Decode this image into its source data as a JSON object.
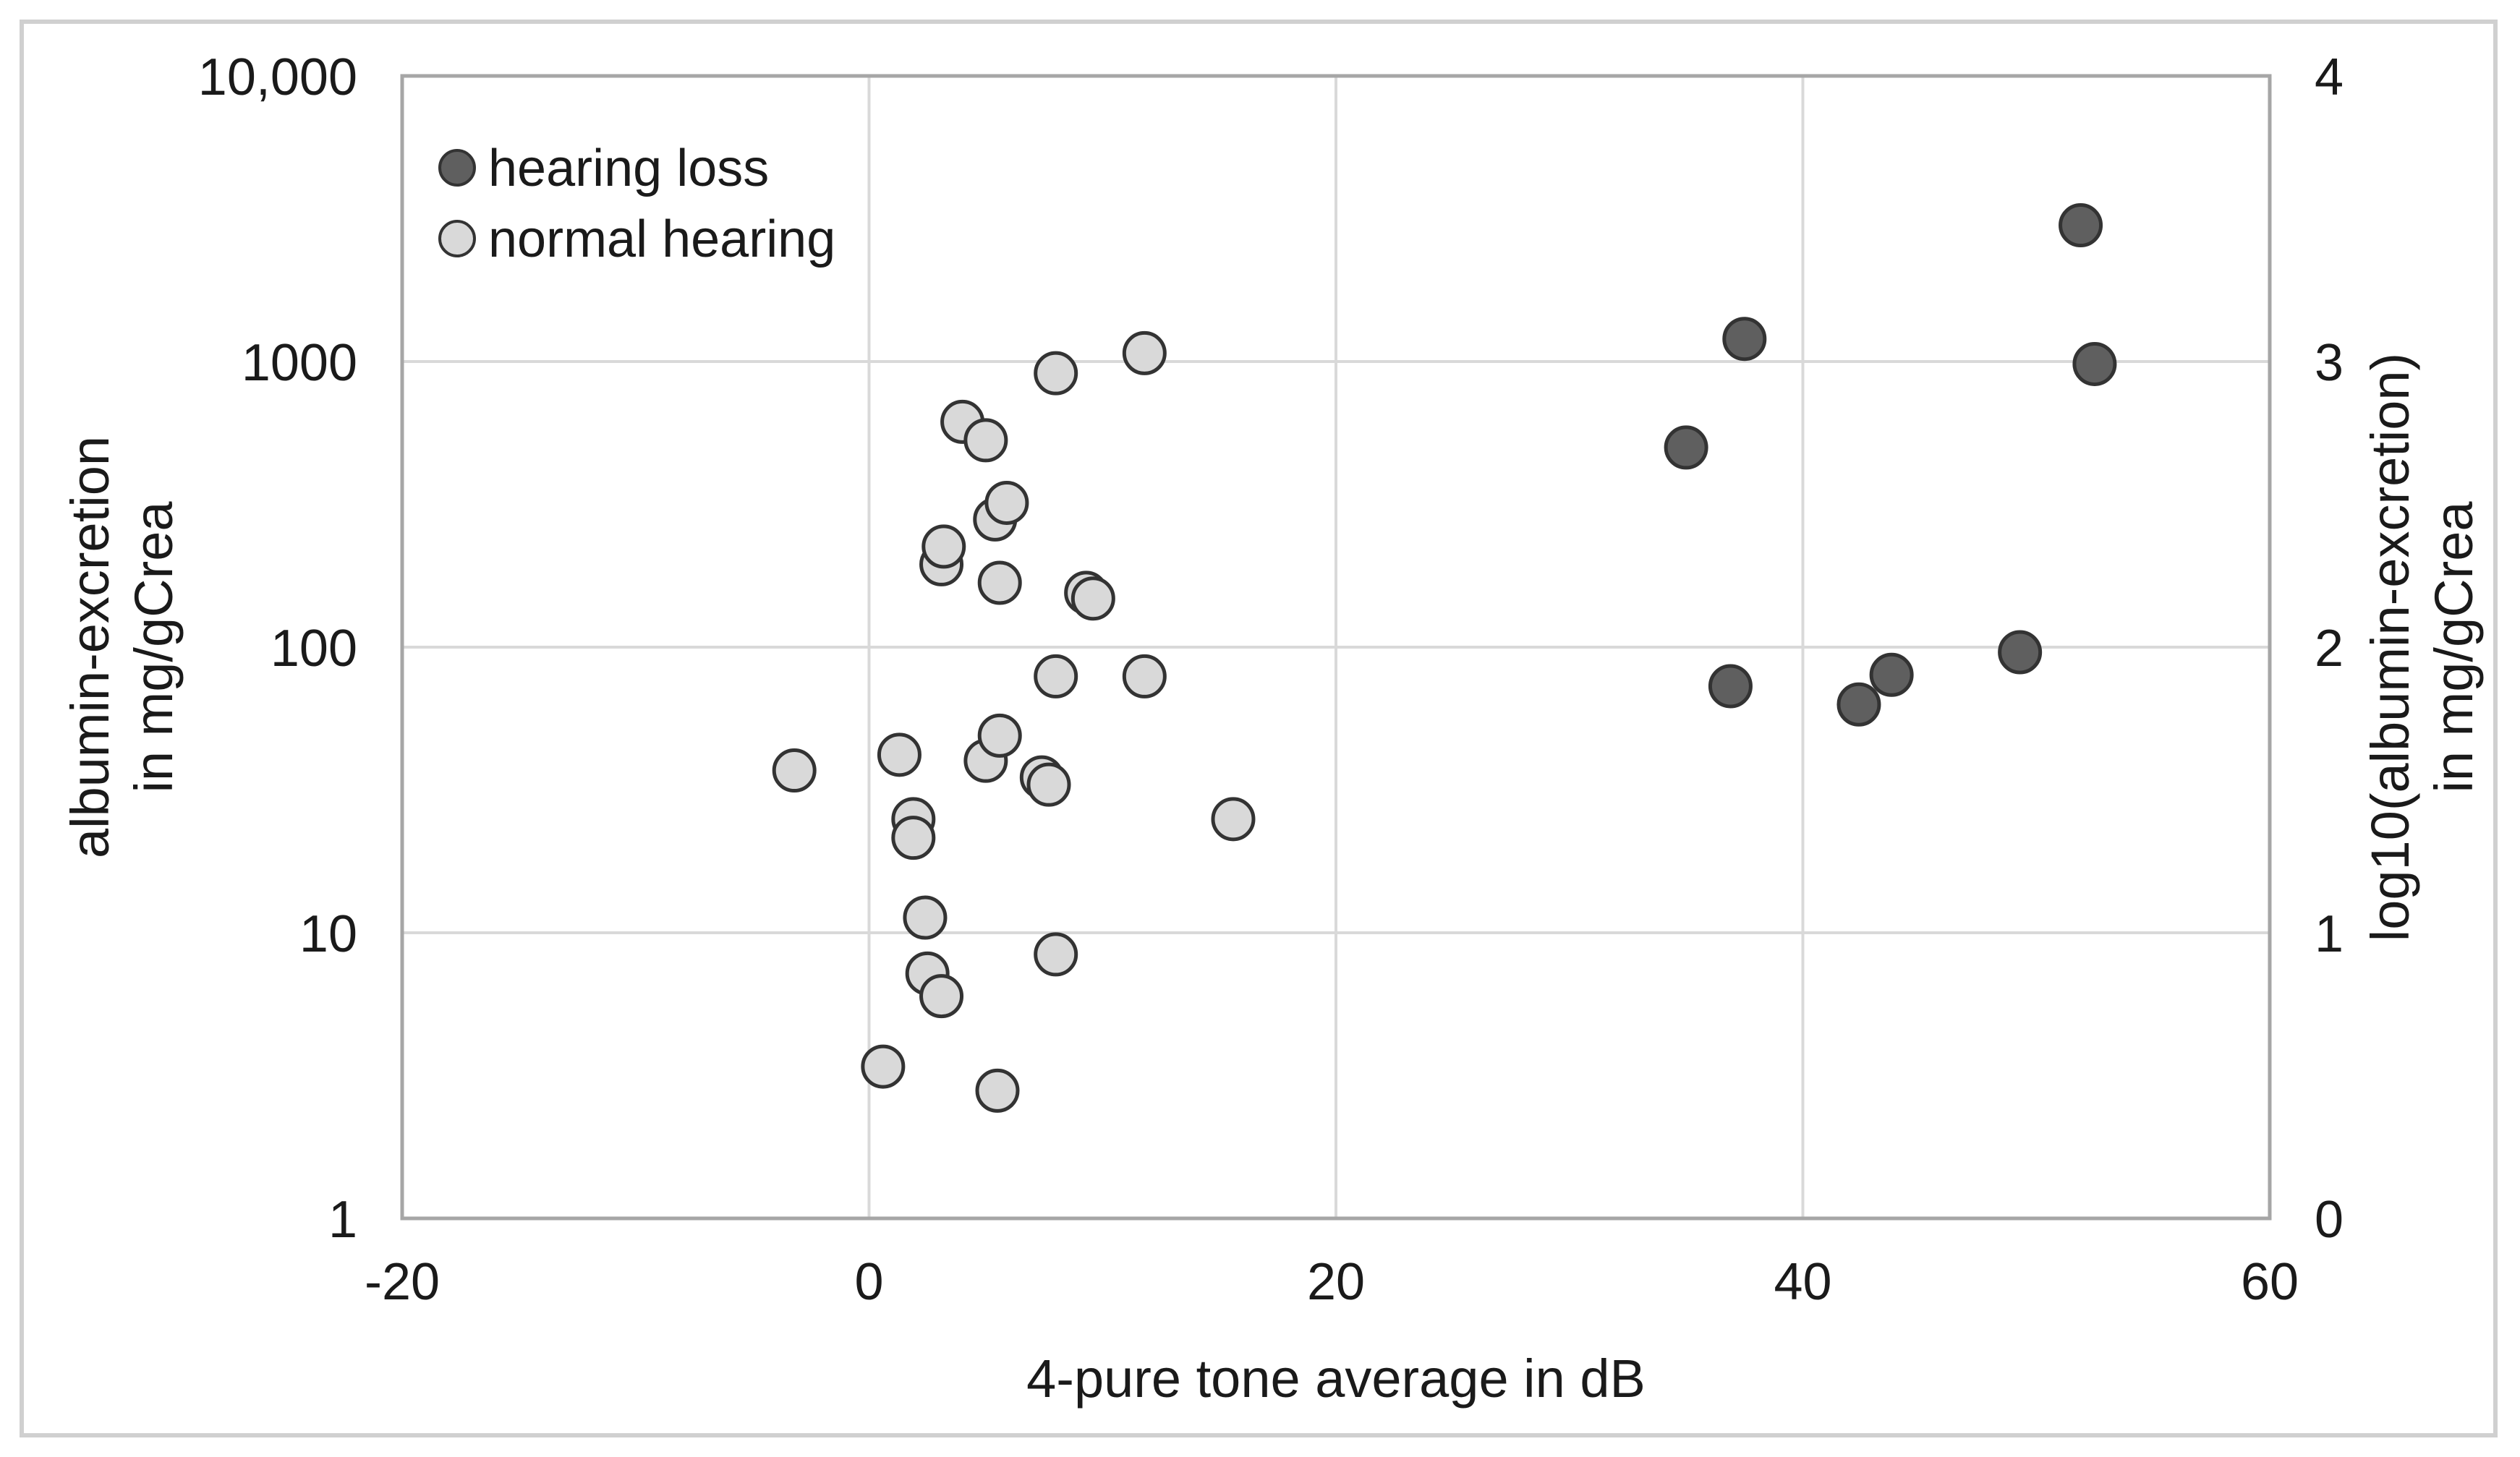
{
  "chart_data": {
    "type": "scatter",
    "title": "",
    "xlabel": "4-pure tone average in dB",
    "ylabel_left": [
      "albumin-excretion",
      "in mg/gCrea"
    ],
    "ylabel_right": [
      "log10(albumin-excretion)",
      "in mg/gCrea"
    ],
    "xlim": [
      -20,
      60
    ],
    "ylim_log10": [
      0,
      4
    ],
    "x_ticks": [
      -20,
      0,
      20,
      40,
      60
    ],
    "x_tick_labels": [
      "-20",
      "0",
      "20",
      "40",
      "60"
    ],
    "y_left_ticks": [
      1,
      10,
      100,
      1000,
      10000
    ],
    "y_left_tick_labels": [
      "1",
      "10",
      "100",
      "1000",
      "10,000"
    ],
    "y_right_ticks": [
      0,
      1,
      2,
      3,
      4
    ],
    "y_right_tick_labels": [
      "0",
      "1",
      "2",
      "3",
      "4"
    ],
    "grid": true,
    "legend_position": "top-left",
    "series": [
      {
        "name": "hearing loss",
        "color": "#5f5f5f",
        "points": [
          {
            "x": 35.0,
            "y": 500
          },
          {
            "x": 37.5,
            "y": 1200
          },
          {
            "x": 36.9,
            "y": 73
          },
          {
            "x": 42.4,
            "y": 63
          },
          {
            "x": 43.8,
            "y": 80
          },
          {
            "x": 49.3,
            "y": 96
          },
          {
            "x": 51.9,
            "y": 3000
          },
          {
            "x": 52.5,
            "y": 980
          }
        ]
      },
      {
        "name": "normal hearing",
        "color": "#d9d9d9",
        "points": [
          {
            "x": -3.2,
            "y": 37
          },
          {
            "x": 0.6,
            "y": 3.4
          },
          {
            "x": 1.3,
            "y": 42
          },
          {
            "x": 1.9,
            "y": 25
          },
          {
            "x": 1.9,
            "y": 21.5
          },
          {
            "x": 2.4,
            "y": 11.3
          },
          {
            "x": 2.5,
            "y": 7.2
          },
          {
            "x": 3.1,
            "y": 6.0
          },
          {
            "x": 3.1,
            "y": 195
          },
          {
            "x": 3.2,
            "y": 225
          },
          {
            "x": 4.0,
            "y": 615
          },
          {
            "x": 5.0,
            "y": 530
          },
          {
            "x": 5.4,
            "y": 280
          },
          {
            "x": 5.6,
            "y": 168
          },
          {
            "x": 5.5,
            "y": 2.8
          },
          {
            "x": 5.0,
            "y": 40
          },
          {
            "x": 5.6,
            "y": 49
          },
          {
            "x": 5.9,
            "y": 320
          },
          {
            "x": 7.4,
            "y": 35
          },
          {
            "x": 7.7,
            "y": 33
          },
          {
            "x": 8.0,
            "y": 910
          },
          {
            "x": 8.0,
            "y": 79
          },
          {
            "x": 8.0,
            "y": 8.4
          },
          {
            "x": 9.3,
            "y": 155
          },
          {
            "x": 9.6,
            "y": 148
          },
          {
            "x": 11.8,
            "y": 1070
          },
          {
            "x": 11.8,
            "y": 79
          },
          {
            "x": 15.6,
            "y": 25
          }
        ]
      }
    ]
  }
}
